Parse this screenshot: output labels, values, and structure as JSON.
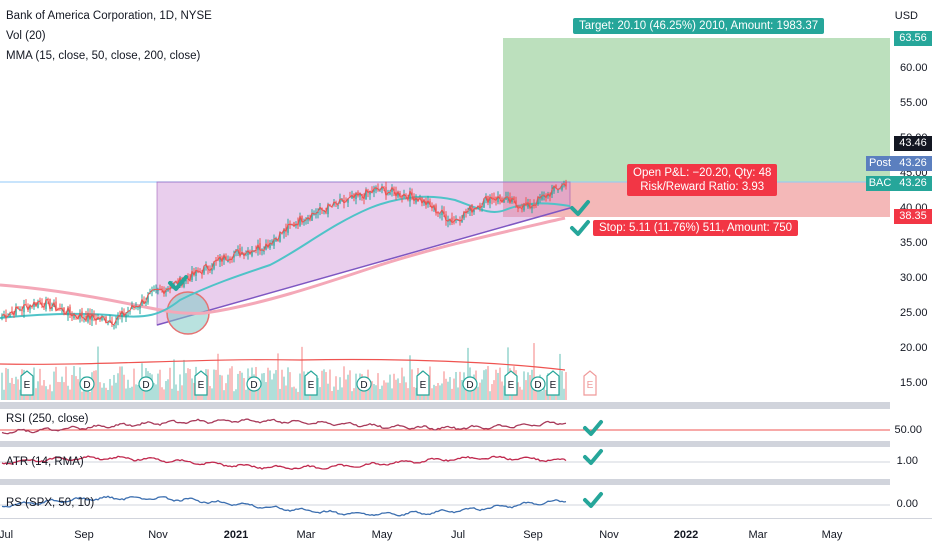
{
  "header": {
    "symbol_line": "Bank of America Corporation, 1D, NYSE",
    "vol_line": "Vol (20)",
    "mma_line": "MMA (15, close, 50, close, 200, close)"
  },
  "axis": {
    "currency": "USD",
    "price_ticks": [
      "60.00",
      "55.00",
      "50.00",
      "45.00",
      "40.00",
      "35.00",
      "30.00",
      "25.00",
      "20.00",
      "15.00"
    ],
    "x_ticks": [
      "Jul",
      "Sep",
      "Nov",
      "2021",
      "Mar",
      "May",
      "Jul",
      "Sep",
      "Nov",
      "2022",
      "Mar",
      "May"
    ]
  },
  "price_labels": {
    "target": "63.56",
    "last_close": "43.46",
    "post_tag": "Post",
    "post_value": "43.26",
    "symbol_tag": "BAC",
    "symbol_value": "43.26",
    "stop": "38.35"
  },
  "position": {
    "target_text": "Target: 20.10 (46.25%) 2010, Amount: 1983.37",
    "open_pnl_text": "Open P&L: −20.20, Qty: 48",
    "risk_reward_text": "Risk/Reward Ratio: 3.93",
    "stop_text": "Stop: 5.11 (11.76%) 511, Amount: 750"
  },
  "event_markers": [
    "E",
    "D",
    "D",
    "E",
    "D",
    "E",
    "D",
    "E",
    "D",
    "E",
    "D",
    "E"
  ],
  "upcoming_marker": "E",
  "panes": {
    "rsi": {
      "label": "RSI (250, close)",
      "level": "50.00"
    },
    "atr": {
      "label": "ATR (14, RMA)",
      "level": "1.00"
    },
    "rs": {
      "label": "RS (SPX, 50, 10)",
      "level": "0.00"
    }
  },
  "colors": {
    "up": "#26a69a",
    "down": "#ef5350",
    "ma15": "#ef5350",
    "ma50": "#4fc3c8",
    "ma200": "#f4a8b8",
    "target_zone": "#a5d6a7",
    "stop_zone": "#ef9a9a",
    "triangle": "#ce93d8",
    "check": "#26a69a",
    "rsi": "#a83a5a",
    "atr": "#c0294e",
    "rs": "#3c6fb0"
  },
  "chart_data": {
    "type": "candlestick",
    "x_axis": "date",
    "y_axis": "price (USD)",
    "approx_close_path": [
      {
        "date": "2020-07",
        "close": 24.5
      },
      {
        "date": "2020-08",
        "close": 26.5
      },
      {
        "date": "2020-09",
        "close": 24.5
      },
      {
        "date": "2020-10",
        "close": 23.8
      },
      {
        "date": "2020-11",
        "close": 27.5
      },
      {
        "date": "2020-12",
        "close": 30.0
      },
      {
        "date": "2021-01",
        "close": 33.0
      },
      {
        "date": "2021-02",
        "close": 34.5
      },
      {
        "date": "2021-03",
        "close": 38.5
      },
      {
        "date": "2021-04",
        "close": 40.5
      },
      {
        "date": "2021-05",
        "close": 42.5
      },
      {
        "date": "2021-06",
        "close": 41.5
      },
      {
        "date": "2021-07",
        "close": 38.0
      },
      {
        "date": "2021-08",
        "close": 41.5
      },
      {
        "date": "2021-09",
        "close": 40.0
      },
      {
        "date": "2021-10",
        "close": 43.46
      }
    ],
    "position": {
      "entry": 43.46,
      "target": 63.56,
      "stop": 38.35,
      "qty": 48
    }
  }
}
